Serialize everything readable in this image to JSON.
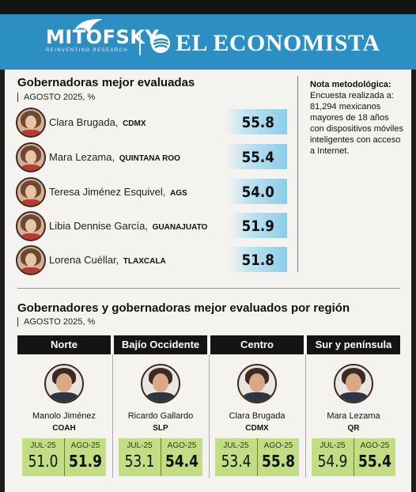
{
  "header": {
    "mitofsky": "MITOFSKY",
    "mitofsky_tagline": "REINVENTING RESEARCH",
    "economista": "EL ECONOMISTA"
  },
  "colors": {
    "header_blue": "#2b8fc4",
    "bar_blue": "#8ccce8",
    "score_green": "#c3dd85",
    "region_header": "#141414"
  },
  "chart_data": [
    {
      "type": "bar",
      "title": "Gobernadoras mejor evaluadas",
      "subtitle": "AGOSTO 2025, %",
      "categories": [
        "Clara Brugada",
        "Mara Lezama",
        "Teresa Jiménez Esquivel",
        "Libia Dennise García",
        "Lorena Cuéllar"
      ],
      "states": [
        "CDMX",
        "QUINTANA ROO",
        "AGS",
        "GUANAJUATO",
        "TLAXCALA"
      ],
      "values": [
        55.8,
        55.4,
        54.0,
        51.9,
        51.8
      ],
      "value_labels": [
        "55.8",
        "55.4",
        "54.0",
        "51.9",
        "51.8"
      ]
    },
    {
      "type": "table",
      "title": "Gobernadores y gobernadoras mejor evaluados por región",
      "subtitle": "AGOSTO 2025, %",
      "columns": [
        "JUL-25",
        "AGO-25"
      ],
      "regions": [
        {
          "region": "Norte",
          "name": "Manolo Jiménez",
          "state": "COAH",
          "jul": "51.0",
          "ago": "51.9"
        },
        {
          "region": "Bajío Occidente",
          "name": "Ricardo Gallardo",
          "state": "SLP",
          "jul": "53.1",
          "ago": "54.4"
        },
        {
          "region": "Centro",
          "name": "Clara Brugada",
          "state": "CDMX",
          "jul": "53.4",
          "ago": "55.8"
        },
        {
          "region": "Sur y península",
          "name": "Mara Lezama",
          "state": "QR",
          "jul": "54.9",
          "ago": "55.4"
        }
      ]
    }
  ],
  "note": {
    "title": "Nota metodológica:",
    "text": "Encuesta realizada a: 81,294 mexicanos mayores de 18 años con dispositivos móviles inteligentes con acceso a Internet."
  }
}
